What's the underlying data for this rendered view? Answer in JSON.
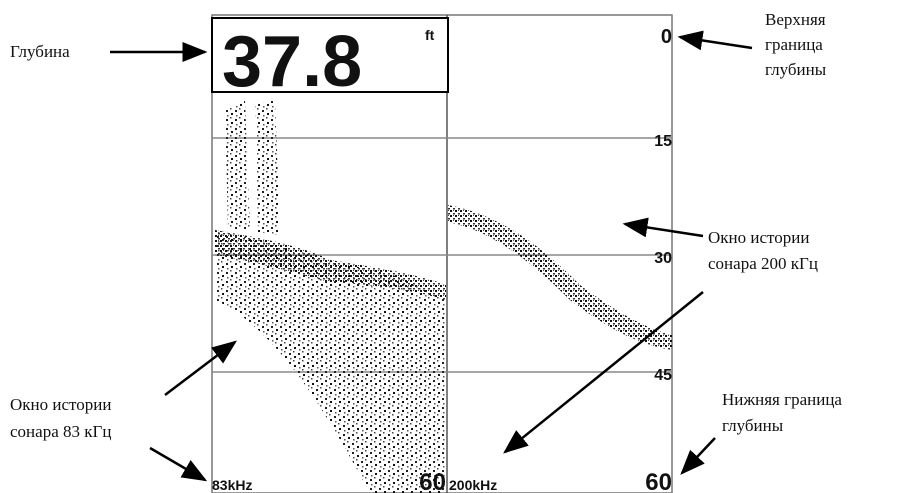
{
  "screen": {
    "depth_value": "37.8",
    "depth_unit": "ft",
    "scale_labels": [
      "0",
      "15",
      "30",
      "45",
      "60"
    ],
    "left_bottom_label": "60",
    "left_frequency": "83kHz",
    "right_frequency": "200kHz"
  },
  "annotations": {
    "depth": "Глубина",
    "upper_limit": [
      "Верхняя",
      "граница",
      "глубины"
    ],
    "window_200": [
      "Окно истории",
      "сонара 200 кГц"
    ],
    "window_83": [
      "Окно истории",
      "сонара 83 кГц"
    ],
    "lower_limit": [
      "Нижняя граница",
      "глубины"
    ]
  }
}
